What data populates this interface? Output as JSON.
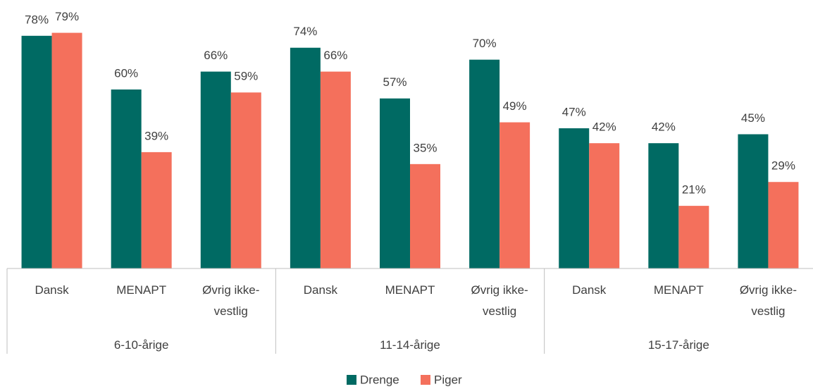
{
  "chart_data": {
    "type": "bar",
    "categories": [
      "Dansk",
      "MENAPT",
      "Øvrig ikke-vestlig",
      "Dansk",
      "MENAPT",
      "Øvrig ikke-vestlig",
      "Dansk",
      "MENAPT",
      "Øvrig ikke-vestlig"
    ],
    "groups": [
      "6-10-årige",
      "11-14-årige",
      "15-17-årige"
    ],
    "series": [
      {
        "name": "Drenge",
        "color": "#006a63",
        "values": [
          78,
          60,
          66,
          74,
          57,
          70,
          47,
          42,
          45
        ],
        "value_labels": [
          "78%",
          "60%",
          "66%",
          "74%",
          "57%",
          "70%",
          "47%",
          "42%",
          "45%"
        ]
      },
      {
        "name": "Piger",
        "color": "#f4705c",
        "values": [
          79,
          39,
          59,
          66,
          35,
          49,
          42,
          21,
          29
        ],
        "value_labels": [
          "79%",
          "39%",
          "59%",
          "66%",
          "35%",
          "49%",
          "42%",
          "21%",
          "29%"
        ]
      }
    ],
    "ylim": [
      0,
      90
    ],
    "legend": "bottom"
  }
}
